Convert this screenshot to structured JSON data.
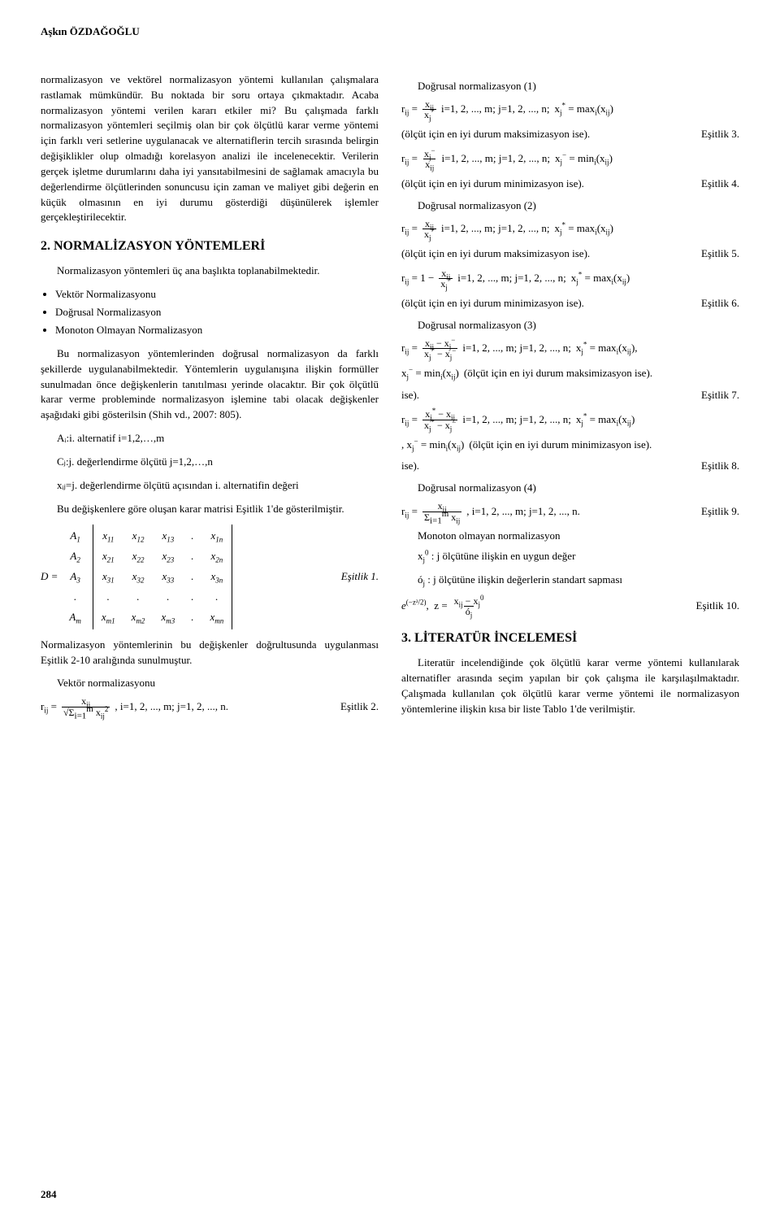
{
  "author": "Aşkın ÖZDAĞOĞLU",
  "page_number": "284",
  "left": {
    "p1": "normalizasyon ve vektörel normalizasyon yöntemi kullanılan çalışmalara rastlamak mümkündür. Bu noktada bir soru ortaya çıkmaktadır. Acaba normalizasyon yöntemi verilen kararı etkiler mi? Bu çalışmada farklı normalizasyon yöntemleri seçilmiş olan bir çok ölçütlü karar verme yöntemi için farklı veri setlerine uygulanacak ve alternatiflerin tercih sırasında belirgin değişiklikler olup olmadığı korelasyon analizi ile incelenecektir. Verilerin gerçek işletme durumlarını daha iyi yansıtabilmesini de sağlamak amacıyla bu değerlendirme ölçütlerinden sonuncusu için zaman ve maliyet gibi değerin en küçük olmasının en iyi durumu gösterdiği düşünülerek işlemler gerçekleştirilecektir.",
    "h2": "2. NORMALİZASYON YÖNTEMLERİ",
    "p2": "Normalizasyon yöntemleri üç ana başlıkta toplanabilmektedir.",
    "b1": "Vektör Normalizasyonu",
    "b2": "Doğrusal Normalizasyon",
    "b3": "Monoton Olmayan Normalizasyon",
    "p3": "Bu normalizasyon yöntemlerinden doğrusal normalizasyon da farklı şekillerde uygulanabilmektedir. Yöntemlerin uygulanışına ilişkin formüller sunulmadan önce değişkenlerin tanıtılması yerinde olacaktır. Bir çok ölçütlü karar verme probleminde normalizasyon işlemine tabi olacak değişkenler aşağıdaki gibi gösterilsin (Shih vd., 2007: 805).",
    "p4": "Aᵢ:i. alternatif i=1,2,…,m",
    "p5": "Cⱼ:j. değerlendirme ölçütü j=1,2,…,n",
    "p6": "xᵢⱼ=j. değerlendirme ölçütü açısından i. alternatifin değeri",
    "p7": "Bu değişkenlere göre oluşan karar matrisi Eşitlik 1'de gösterilmiştir.",
    "eq1_label": "Eşitlik 1.",
    "p8": "Normalizasyon yöntemlerinin bu değişkenler doğrultusunda uygulanması Eşitlik 2-10 aralığında sunulmuştur.",
    "vec_head": "Vektör normalizasyonu",
    "eq2_range": ", i=1, 2, ..., m;  j=1, 2, ..., n.",
    "eq2_label": "Eşitlik 2."
  },
  "right": {
    "d1": "Doğrusal normalizasyon (1)",
    "eq3_t": "  i=1, 2, ..., m;   j=1, 2, ..., n;",
    "eq3_desc": "(ölçüt için en iyi durum maksimizasyon ise).",
    "eq3_label": "Eşitlik 3.",
    "eq4_t": "  i=1, 2, ..., m;   j=1, 2, ..., n;",
    "eq4_desc": "(ölçüt için en iyi durum minimizasyon ise).",
    "eq4_label": "Eşitlik 4.",
    "d2": "Doğrusal normalizasyon (2)",
    "eq5_t": "  i=1, 2, ..., m;   j=1, 2, ..., n;",
    "eq5_desc": "(ölçüt için en iyi durum maksimizasyon ise).",
    "eq5_label": "Eşitlik 5.",
    "eq6_t": "  i=1, 2, ..., m;   j=1, 2, ..., n;",
    "eq6_desc": "(ölçüt için en iyi durum minimizasyon ise).",
    "eq6_label": "Eşitlik 6.",
    "d3": "Doğrusal normalizasyon (3)",
    "eq7_t": "  i=1, 2, ..., m;   j=1, 2, ..., n;",
    "eq7_desc": "(ölçüt için en iyi durum maksimizasyon ise).",
    "eq7_label": "Eşitlik 7.",
    "eq8_t": "  i=1, 2, ..., m;   j=1, 2, ..., n;",
    "eq8_desc": "(ölçüt için en iyi durum minimizasyon ise).",
    "eq8_label": "Eşitlik 8.",
    "d4": "Doğrusal normalizasyon (4)",
    "eq9_t": ", i=1, 2, ..., m;   j=1, 2, ..., n.",
    "eq9_label": "Eşitlik 9.",
    "mon": "Monoton olmayan normalizasyon",
    "mon_l1": ": j ölçütüne ilişkin en uygun değer",
    "mon_l2": ": j ölçütüne ilişkin değerlerin standart sapması",
    "eq10_label": "Eşitlik 10.",
    "h3": "3. LİTERATÜR İNCELEMESİ",
    "p_lit": "Literatür incelendiğinde çok ölçütlü karar verme yöntemi kullanılarak alternatifler arasında seçim yapılan bir çok çalışma ile karşılaşılmaktadır. Çalışmada kullanılan çok ölçütlü karar verme yöntemi ile normalizasyon yöntemlerine ilişkin kısa bir liste Tablo 1'de verilmiştir."
  }
}
